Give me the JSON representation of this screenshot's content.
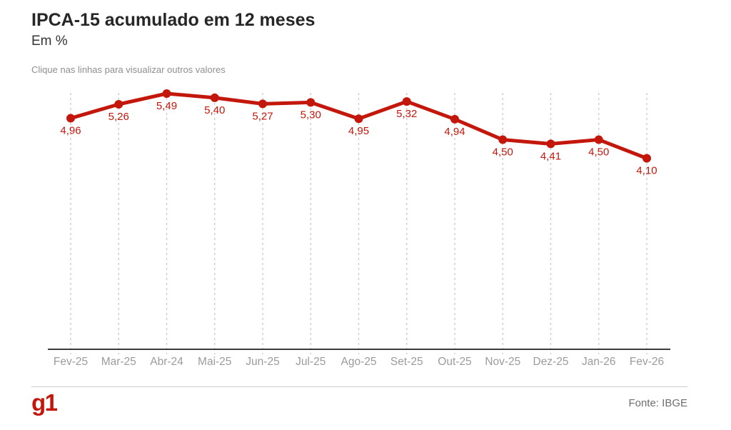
{
  "header": {
    "title": "IPCA-15 acumulado em 12 meses",
    "subtitle": "Em %",
    "note": "Clique nas linhas para visualizar outros valores"
  },
  "chart_data": {
    "type": "line",
    "title": "IPCA-15 acumulado em 12 meses",
    "ylabel": "Em %",
    "xlabel": "",
    "categories": [
      "Fev-25",
      "Mar-25",
      "Abr-24",
      "Mai-25",
      "Jun-25",
      "Jul-25",
      "Ago-25",
      "Set-25",
      "Out-25",
      "Nov-25",
      "Dez-25",
      "Jan-26",
      "Fev-26"
    ],
    "values": [
      4.96,
      5.26,
      5.49,
      5.4,
      5.27,
      5.3,
      4.95,
      5.32,
      4.94,
      4.5,
      4.41,
      4.5,
      4.1
    ],
    "value_labels": [
      "4,96",
      "5,26",
      "5,49",
      "5,40",
      "5,27",
      "5,30",
      "4,95",
      "5,32",
      "4,94",
      "4,50",
      "4,41",
      "4,50",
      "4,10"
    ],
    "ylim": [
      0,
      5.49
    ],
    "grid": "vertical-dashed",
    "legend": "none",
    "line_color": "#c4170c",
    "marker": "circle"
  },
  "footer": {
    "logo": "g1",
    "source": "Fonte: IBGE"
  },
  "colors": {
    "accent_red": "#c4170c",
    "title_text": "#262626",
    "muted_text": "#9b9b9b",
    "axis_line": "#3c3c3c",
    "gridline": "#c9c9c9",
    "source_text": "#6e6e6e",
    "divider": "#cccccc"
  }
}
